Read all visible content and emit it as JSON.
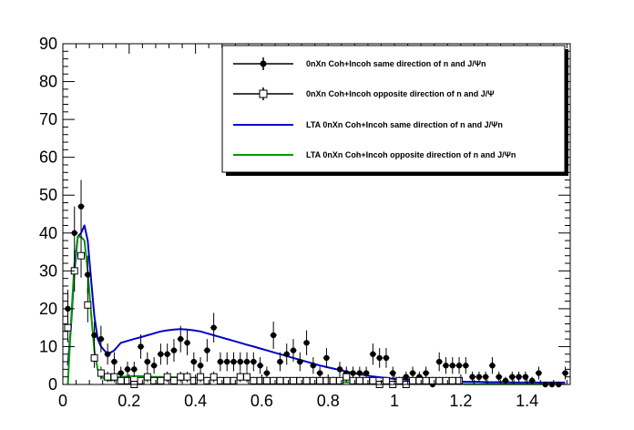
{
  "chart_data": {
    "type": "scatter",
    "title": "",
    "xlabel": "",
    "ylabel": "",
    "xlim": [
      0,
      1.53
    ],
    "ylim": [
      0,
      90
    ],
    "x_ticks": [
      0,
      0.2,
      0.4,
      0.6,
      0.8,
      1,
      1.2,
      1.4
    ],
    "x_tick_labels": [
      "0",
      "0.2",
      "0.4",
      "0.6",
      "0.8",
      "1",
      "1.2",
      "1.4"
    ],
    "y_ticks": [
      0,
      10,
      20,
      30,
      40,
      50,
      60,
      70,
      80,
      90
    ],
    "y_tick_labels": [
      "0",
      "10",
      "20",
      "30",
      "40",
      "50",
      "60",
      "70",
      "80",
      "90"
    ],
    "grid": false,
    "legend_position": "top-right",
    "x_bin_halfwidth": 0.01,
    "series": [
      {
        "name": "0nXn Coh+Incoh same direction of n and J/Ψn",
        "kind": "points",
        "marker": "filled-circle",
        "color": "#000000",
        "x": [
          0.015,
          0.035,
          0.055,
          0.075,
          0.095,
          0.115,
          0.135,
          0.155,
          0.175,
          0.195,
          0.215,
          0.235,
          0.255,
          0.275,
          0.295,
          0.315,
          0.335,
          0.355,
          0.375,
          0.395,
          0.415,
          0.435,
          0.455,
          0.475,
          0.495,
          0.515,
          0.535,
          0.555,
          0.575,
          0.595,
          0.615,
          0.635,
          0.655,
          0.675,
          0.695,
          0.715,
          0.735,
          0.755,
          0.775,
          0.795,
          0.815,
          0.835,
          0.855,
          0.875,
          0.895,
          0.915,
          0.935,
          0.955,
          0.975,
          0.995,
          1.015,
          1.035,
          1.055,
          1.075,
          1.095,
          1.115,
          1.135,
          1.155,
          1.175,
          1.195,
          1.215,
          1.235,
          1.255,
          1.275,
          1.295,
          1.315,
          1.335,
          1.355,
          1.375,
          1.395,
          1.415,
          1.435,
          1.455,
          1.475,
          1.495,
          1.515
        ],
        "y": [
          20,
          40,
          47,
          29,
          13,
          12,
          8,
          6,
          3,
          4,
          4,
          10,
          6,
          5,
          8,
          8,
          9,
          12,
          11,
          6,
          5,
          9,
          15,
          6,
          6,
          6,
          6,
          6,
          6,
          5,
          3,
          13,
          6,
          8,
          9,
          6,
          11,
          5,
          3,
          7,
          1,
          4,
          3,
          3,
          3,
          3,
          8,
          7,
          7,
          3,
          1,
          2,
          3,
          2,
          3,
          0,
          6,
          5,
          5,
          5,
          5,
          2,
          2,
          2,
          5,
          2,
          1,
          2,
          2,
          2,
          1,
          3,
          0,
          0,
          0,
          3
        ],
        "y_err": [
          5,
          7,
          7,
          5,
          3.6,
          3.5,
          2.8,
          2.5,
          1.7,
          2,
          2,
          3.2,
          2.5,
          2.2,
          2.8,
          2.8,
          3,
          3.5,
          3.3,
          2.5,
          2.2,
          3,
          3.9,
          2.5,
          2.5,
          2.5,
          2.5,
          2.5,
          2.5,
          2.2,
          1.7,
          3.6,
          2.5,
          2.8,
          3,
          2.5,
          3.3,
          2.2,
          1.7,
          2.6,
          1,
          2,
          1.7,
          1.7,
          1.7,
          1.7,
          2.8,
          2.6,
          2.6,
          1.7,
          1,
          1.4,
          1.7,
          1.4,
          1.7,
          0,
          2.5,
          2.2,
          2.2,
          2.2,
          2.2,
          1.4,
          1.4,
          1.4,
          2.2,
          1.4,
          1,
          1.4,
          1.4,
          1.4,
          1,
          1.7,
          0,
          0,
          0,
          1.7
        ]
      },
      {
        "name": "0nXn Coh+Incoh  opposite direction of n and J/Ψ",
        "kind": "points",
        "marker": "open-square",
        "color": "#000000",
        "x": [
          0.015,
          0.035,
          0.055,
          0.075,
          0.095,
          0.115,
          0.135,
          0.155,
          0.175,
          0.195,
          0.215,
          0.235,
          0.255,
          0.275,
          0.295,
          0.315,
          0.335,
          0.355,
          0.375,
          0.395,
          0.415,
          0.435,
          0.455,
          0.475,
          0.495,
          0.515,
          0.535,
          0.555,
          0.575,
          0.595,
          0.615,
          0.635,
          0.655,
          0.675,
          0.695,
          0.715,
          0.735,
          0.755,
          0.775,
          0.795,
          0.815,
          0.835,
          0.855,
          0.875,
          0.895,
          0.915,
          0.935,
          0.955,
          0.975,
          0.995,
          1.015,
          1.035,
          1.055,
          1.075,
          1.095,
          1.115,
          1.135,
          1.155,
          1.175,
          1.195
        ],
        "y": [
          15,
          30,
          34,
          21,
          7,
          3,
          2,
          2,
          1,
          1,
          0,
          1,
          2,
          1,
          1,
          2,
          1,
          2,
          2,
          1,
          2,
          1,
          2,
          1,
          1,
          1,
          2,
          2,
          1,
          1,
          1,
          1,
          1,
          1,
          1,
          1,
          1,
          1,
          1,
          1,
          1,
          1,
          2,
          1,
          1,
          1,
          1,
          0,
          1,
          0,
          1,
          0,
          1,
          1,
          1,
          1,
          1,
          1,
          1,
          1
        ],
        "y_err": [
          3.9,
          5.5,
          5.8,
          4.6,
          2.6,
          1.7,
          1.4,
          1.4,
          1,
          1,
          0,
          1,
          1.4,
          1,
          1,
          1.4,
          1,
          1.4,
          1.4,
          1,
          1.4,
          1,
          1.4,
          1,
          1,
          1,
          1.4,
          1.4,
          1,
          1,
          1,
          1,
          1,
          1,
          1,
          1,
          1,
          1,
          1,
          1,
          1,
          1,
          1.4,
          1,
          1,
          1,
          1,
          0,
          1,
          0,
          1,
          0,
          1,
          1,
          1,
          1,
          1,
          1,
          1,
          1
        ]
      },
      {
        "name": "LTA 0nXn Coh+Incoh same direction of n and J/Ψn",
        "kind": "line",
        "color": "#0000cc",
        "x": [
          0.015,
          0.025,
          0.035,
          0.045,
          0.055,
          0.065,
          0.075,
          0.085,
          0.095,
          0.105,
          0.115,
          0.125,
          0.135,
          0.145,
          0.155,
          0.165,
          0.175,
          0.195,
          0.215,
          0.235,
          0.255,
          0.275,
          0.295,
          0.315,
          0.335,
          0.355,
          0.375,
          0.395,
          0.415,
          0.435,
          0.455,
          0.475,
          0.495,
          0.515,
          0.535,
          0.555,
          0.575,
          0.595,
          0.615,
          0.635,
          0.655,
          0.675,
          0.695,
          0.715,
          0.735,
          0.755,
          0.775,
          0.795,
          0.815,
          0.835,
          0.855,
          0.875,
          0.895,
          0.915,
          0.935,
          0.955,
          0.975,
          0.995,
          1.015,
          1.035,
          1.055,
          1.075,
          1.095,
          1.115,
          1.135,
          1.155,
          1.175,
          1.195,
          1.215,
          1.235,
          1.255,
          1.275,
          1.295,
          1.315,
          1.335,
          1.355,
          1.375,
          1.395,
          1.415,
          1.435,
          1.455,
          1.475,
          1.495,
          1.515
        ],
        "y": [
          5,
          16,
          30,
          39,
          40,
          42,
          38,
          28,
          18,
          12,
          10,
          9,
          8,
          8.5,
          9,
          10,
          11,
          11.5,
          12,
          12.5,
          13,
          13.5,
          14,
          14.3,
          14.5,
          14.6,
          14.5,
          14.3,
          14,
          13.5,
          13,
          12.5,
          12,
          11.5,
          11,
          10.5,
          10,
          9.5,
          9,
          8.5,
          8,
          7.5,
          7,
          6.5,
          6,
          5.5,
          5,
          4.6,
          4.2,
          3.8,
          3.4,
          3.0,
          2.7,
          2.4,
          2.1,
          1.9,
          1.7,
          1.5,
          1.4,
          1.3,
          1.2,
          1.1,
          1.0,
          1.0,
          0.9,
          0.9,
          0.8,
          0.8,
          0.7,
          0.7,
          0.7,
          0.6,
          0.6,
          0.6,
          0.6,
          0.5,
          0.5,
          0.5,
          0.5,
          0.5,
          0.5,
          0.5,
          0.5,
          0.5
        ]
      },
      {
        "name": "LTA 0nXn Coh+Incoh opposite direction of n and J/Ψn",
        "kind": "line",
        "color": "#009900",
        "x": [
          0.015,
          0.025,
          0.035,
          0.045,
          0.055,
          0.065,
          0.075,
          0.085,
          0.095,
          0.105,
          0.115,
          0.125,
          0.135,
          0.145,
          0.155,
          0.165,
          0.175,
          0.195,
          0.215,
          0.235,
          0.255,
          0.275,
          0.295,
          0.315,
          0.335,
          0.355,
          0.375,
          0.395,
          0.415,
          0.435,
          0.455,
          0.475,
          0.495,
          0.515,
          0.535,
          0.555,
          0.575,
          0.595,
          0.615,
          0.635,
          0.655,
          0.675,
          0.695,
          0.715,
          0.735,
          0.755,
          0.775,
          0.795,
          0.815,
          0.835,
          0.855,
          0.875,
          0.895,
          0.915,
          0.935,
          0.955,
          0.975,
          0.995,
          1.015,
          1.035,
          1.055,
          1.075,
          1.095,
          1.115,
          1.135,
          1.155,
          1.175,
          1.195,
          1.215,
          1.235,
          1.255,
          1.275,
          1.295,
          1.315,
          1.335,
          1.355,
          1.375,
          1.395,
          1.415,
          1.435,
          1.455,
          1.475,
          1.495,
          1.515
        ],
        "y": [
          0,
          17,
          32,
          39,
          39,
          38,
          30,
          19,
          9,
          4,
          2,
          1.5,
          1.2,
          1.0,
          1.3,
          1.8,
          2.0,
          2.1,
          2.2,
          2.2,
          2.1,
          2.0,
          2.0,
          1.9,
          1.9,
          1.8,
          1.8,
          1.7,
          1.7,
          1.6,
          1.6,
          1.5,
          1.5,
          1.4,
          1.4,
          1.3,
          1.3,
          1.2,
          1.2,
          1.1,
          1.1,
          1.0,
          1.0,
          0.9,
          0.9,
          0.8,
          0.8,
          0.7,
          0.7,
          0.6,
          0.6,
          0.5,
          0.5,
          0.5,
          0.4,
          0.4,
          0.4,
          0.3,
          0.3,
          0.3,
          0.3,
          0.2,
          0.2,
          0.2,
          0.2,
          0.2,
          0.2,
          0.2,
          0.1,
          0.1,
          0.1,
          0.1,
          0.1,
          0.1,
          0.1,
          0.1,
          0.1,
          0.1,
          0.1,
          0.1,
          0.1,
          0.1,
          0.1,
          0.1
        ]
      }
    ]
  }
}
